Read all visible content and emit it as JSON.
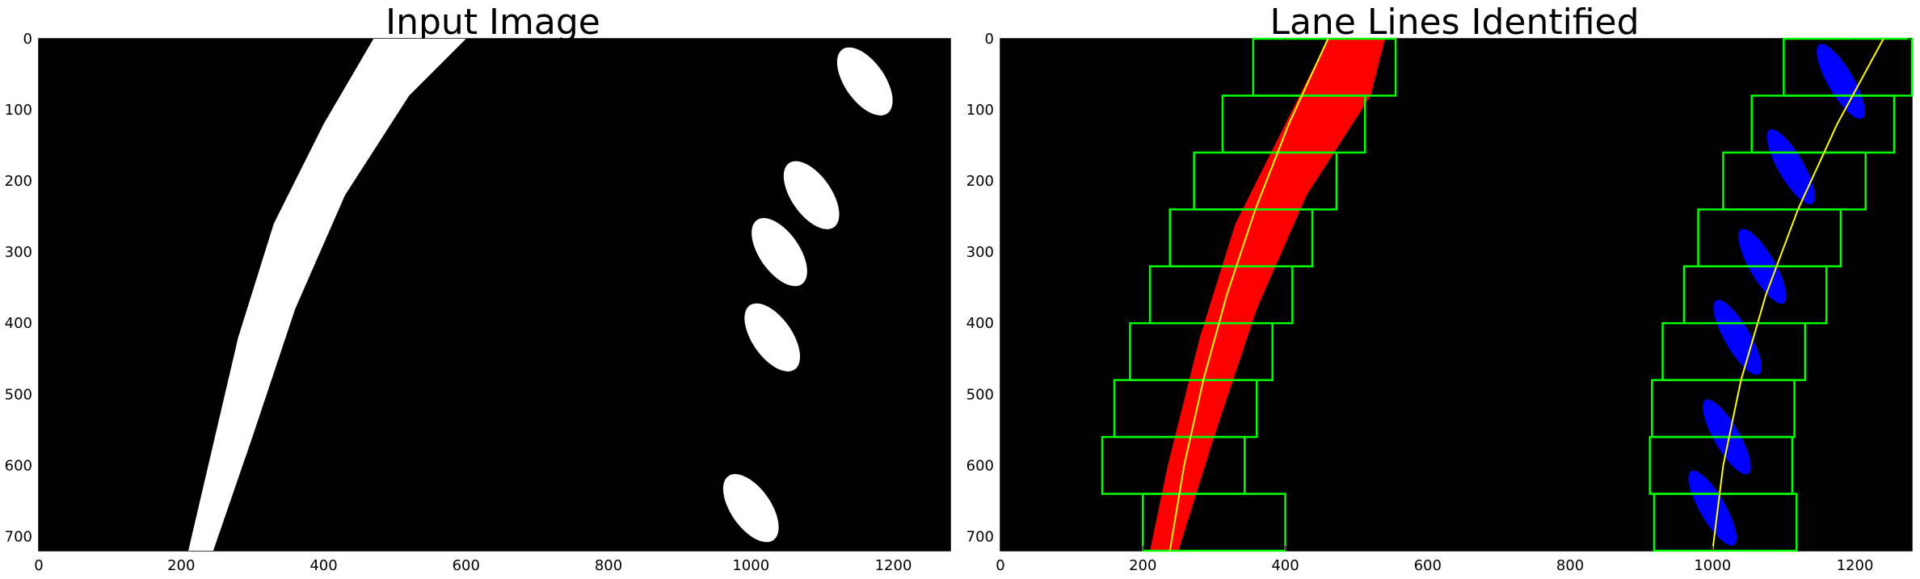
{
  "chart_data": [
    {
      "type": "image",
      "title": "Input Image",
      "x_ticks": [
        0,
        200,
        400,
        600,
        800,
        1000,
        1200
      ],
      "y_ticks": [
        0,
        100,
        200,
        300,
        400,
        500,
        600,
        700
      ],
      "xlim": [
        0,
        1280
      ],
      "ylim": [
        720,
        0
      ],
      "colors": {
        "background": "#000000",
        "pixels": "#ffffff"
      },
      "lane_pixels": {
        "left": {
          "bottom_x": [
            210,
            245
          ],
          "top_x": [
            470,
            600
          ]
        },
        "right": [
          {
            "x": 1160,
            "y": 60
          },
          {
            "x": 1085,
            "y": 220
          },
          {
            "x": 1040,
            "y": 300
          },
          {
            "x": 1030,
            "y": 420
          },
          {
            "x": 1000,
            "y": 660
          }
        ]
      }
    },
    {
      "type": "image",
      "title": "Lane Lines Identified",
      "x_ticks": [
        0,
        200,
        400,
        600,
        800,
        1000,
        1200
      ],
      "y_ticks": [
        0,
        100,
        200,
        300,
        400,
        500,
        600,
        700
      ],
      "xlim": [
        0,
        1280
      ],
      "ylim": [
        720,
        0
      ],
      "colors": {
        "background": "#000000",
        "left_lane": "#ff0000",
        "right_lane": "#0000ff",
        "windows": "#00ff00",
        "fit_line": "#ffff00"
      },
      "windows": {
        "left": [
          {
            "xmin": 200,
            "xmax": 400,
            "ymin": 640,
            "ymax": 720
          },
          {
            "xmin": 143,
            "xmax": 343,
            "ymin": 560,
            "ymax": 640
          },
          {
            "xmin": 160,
            "xmax": 360,
            "ymin": 480,
            "ymax": 560
          },
          {
            "xmin": 182,
            "xmax": 382,
            "ymin": 400,
            "ymax": 480
          },
          {
            "xmin": 210,
            "xmax": 410,
            "ymin": 320,
            "ymax": 400
          },
          {
            "xmin": 238,
            "xmax": 438,
            "ymin": 240,
            "ymax": 320
          },
          {
            "xmin": 272,
            "xmax": 472,
            "ymin": 160,
            "ymax": 240
          },
          {
            "xmin": 312,
            "xmax": 512,
            "ymin": 80,
            "ymax": 160
          },
          {
            "xmin": 355,
            "xmax": 555,
            "ymin": 0,
            "ymax": 80
          }
        ],
        "right": [
          {
            "xmin": 918,
            "xmax": 1118,
            "ymin": 640,
            "ymax": 720
          },
          {
            "xmin": 912,
            "xmax": 1112,
            "ymin": 560,
            "ymax": 640
          },
          {
            "xmin": 915,
            "xmax": 1115,
            "ymin": 480,
            "ymax": 560
          },
          {
            "xmin": 930,
            "xmax": 1130,
            "ymin": 400,
            "ymax": 480
          },
          {
            "xmin": 960,
            "xmax": 1160,
            "ymin": 320,
            "ymax": 400
          },
          {
            "xmin": 980,
            "xmax": 1180,
            "ymin": 240,
            "ymax": 320
          },
          {
            "xmin": 1015,
            "xmax": 1215,
            "ymin": 160,
            "ymax": 240
          },
          {
            "xmin": 1055,
            "xmax": 1255,
            "ymin": 80,
            "ymax": 160
          },
          {
            "xmin": 1100,
            "xmax": 1300,
            "ymin": 0,
            "ymax": 80
          }
        ]
      },
      "fits": {
        "left": [
          {
            "x": 238,
            "y": 720
          },
          {
            "x": 258,
            "y": 600
          },
          {
            "x": 285,
            "y": 480
          },
          {
            "x": 318,
            "y": 360
          },
          {
            "x": 358,
            "y": 240
          },
          {
            "x": 405,
            "y": 120
          },
          {
            "x": 460,
            "y": 0
          }
        ],
        "right": [
          {
            "x": 1000,
            "y": 720
          },
          {
            "x": 1015,
            "y": 600
          },
          {
            "x": 1040,
            "y": 480
          },
          {
            "x": 1075,
            "y": 360
          },
          {
            "x": 1120,
            "y": 240
          },
          {
            "x": 1175,
            "y": 120
          },
          {
            "x": 1240,
            "y": 0
          }
        ]
      }
    }
  ]
}
